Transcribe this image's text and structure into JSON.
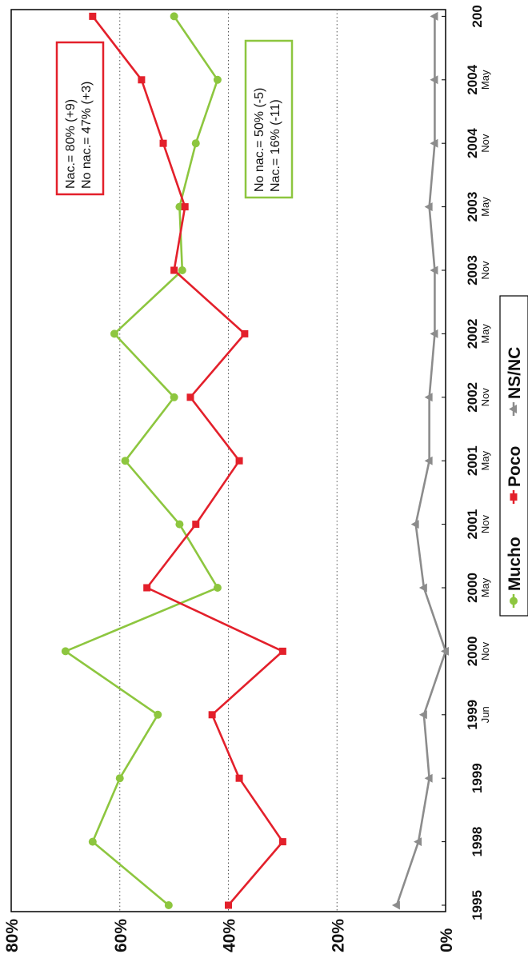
{
  "chart_data": {
    "type": "line",
    "orientation": "rotated 90° clockwise (x axis along right edge, y axis along bottom)",
    "categories": [
      {
        "year": "1995",
        "sub": ""
      },
      {
        "year": "1998",
        "sub": ""
      },
      {
        "year": "1999",
        "sub": ""
      },
      {
        "year": "1999",
        "sub": "Jun"
      },
      {
        "year": "2000",
        "sub": "Nov"
      },
      {
        "year": "2000",
        "sub": "May"
      },
      {
        "year": "2001",
        "sub": "Nov"
      },
      {
        "year": "2001",
        "sub": "May"
      },
      {
        "year": "2002",
        "sub": "Nov"
      },
      {
        "year": "2002",
        "sub": "May"
      },
      {
        "year": "2003",
        "sub": "Nov"
      },
      {
        "year": "2003",
        "sub": "May"
      },
      {
        "year": "2004",
        "sub": "Nov"
      },
      {
        "year": "2004",
        "sub": "May"
      },
      {
        "year": "200",
        "sub": ""
      }
    ],
    "ylim": [
      0,
      80
    ],
    "yticks": [
      "0%",
      "20%",
      "40%",
      "60%",
      "80%"
    ],
    "grid": "dotted horizontal lines at 20%, 40%, 60%",
    "series": [
      {
        "name": "Mucho",
        "color": "#8dc63f",
        "marker": "circle",
        "values": [
          51,
          65,
          60,
          53,
          70,
          42,
          49,
          59,
          50,
          61,
          48.5,
          49,
          46,
          42,
          50
        ]
      },
      {
        "name": "Poco",
        "color": "#e3202b",
        "marker": "square",
        "values": [
          40,
          30,
          38,
          43,
          30,
          55,
          46,
          38,
          47,
          37,
          50,
          48,
          52,
          56,
          65
        ]
      },
      {
        "name": "NS/NC",
        "color": "#8c8c8c",
        "marker": "triangle",
        "values": [
          9,
          5,
          3,
          4,
          0,
          4,
          5.5,
          3,
          3,
          2,
          2,
          3,
          2,
          2,
          2
        ]
      }
    ],
    "annotations": [
      {
        "lines": [
          "Nac.= 80%  (+9)",
          "No nac.= 47% (+3)"
        ],
        "color": "#e3202b"
      },
      {
        "lines": [
          "No nac.= 50%  (-5)",
          "Nac.= 16% (-11)"
        ],
        "color": "#8dc63f"
      }
    ],
    "legend_position": "bottom-center"
  }
}
